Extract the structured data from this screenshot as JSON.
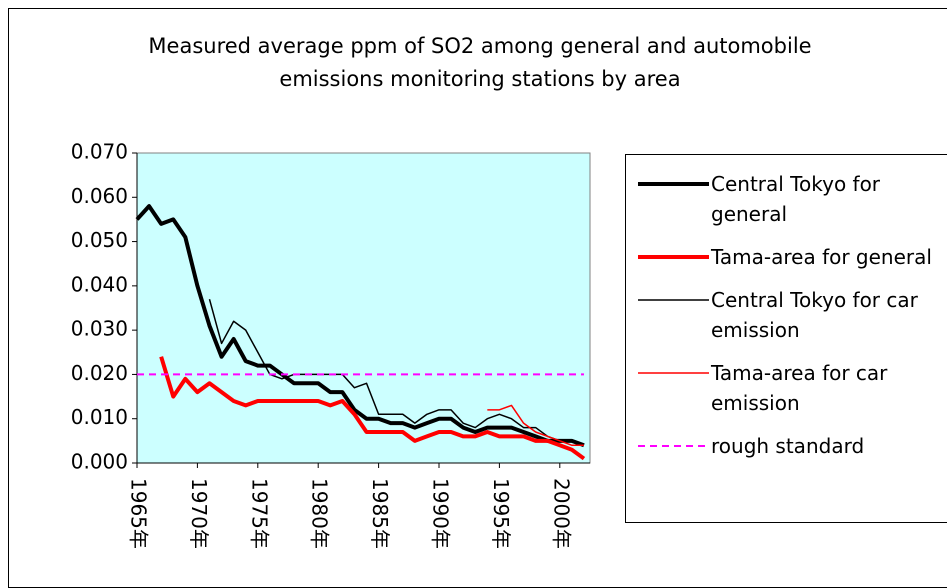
{
  "chart_data": {
    "type": "line",
    "title": "Measured average ppm of SO2 among general and automobile emissions monitoring stations by area",
    "x": [
      1965,
      1966,
      1967,
      1968,
      1969,
      1970,
      1971,
      1972,
      1973,
      1974,
      1975,
      1976,
      1977,
      1978,
      1979,
      1980,
      1981,
      1982,
      1983,
      1984,
      1985,
      1986,
      1987,
      1988,
      1989,
      1990,
      1991,
      1992,
      1993,
      1994,
      1995,
      1996,
      1997,
      1998,
      1999,
      2000,
      2001,
      2002
    ],
    "xlim": [
      1965,
      2002.5
    ],
    "xticks": [
      {
        "value": 1965,
        "label": "1965年"
      },
      {
        "value": 1970,
        "label": "1970年"
      },
      {
        "value": 1975,
        "label": "1975年"
      },
      {
        "value": 1980,
        "label": "1980年"
      },
      {
        "value": 1985,
        "label": "1985年"
      },
      {
        "value": 1990,
        "label": "1990年"
      },
      {
        "value": 1995,
        "label": "1995年"
      },
      {
        "value": 2000,
        "label": "2000年"
      }
    ],
    "ylim": [
      0,
      0.07
    ],
    "yticks": [
      {
        "value": 0,
        "label": "0.000"
      },
      {
        "value": 0.01,
        "label": "0.010"
      },
      {
        "value": 0.02,
        "label": "0.020"
      },
      {
        "value": 0.03,
        "label": "0.030"
      },
      {
        "value": 0.04,
        "label": "0.040"
      },
      {
        "value": 0.05,
        "label": "0.050"
      },
      {
        "value": 0.06,
        "label": "0.060"
      },
      {
        "value": 0.07,
        "label": "0.070"
      }
    ],
    "series": [
      {
        "name": "Central Tokyo for general",
        "color": "#000000",
        "width": 4,
        "values": [
          0.055,
          0.058,
          0.054,
          0.055,
          0.051,
          0.04,
          0.031,
          0.024,
          0.028,
          0.023,
          0.022,
          0.022,
          0.02,
          0.018,
          0.018,
          0.018,
          0.016,
          0.016,
          0.012,
          0.01,
          0.01,
          0.009,
          0.009,
          0.008,
          0.009,
          0.01,
          0.01,
          0.008,
          0.007,
          0.008,
          0.008,
          0.008,
          0.007,
          0.006,
          0.005,
          0.005,
          0.005,
          0.004
        ]
      },
      {
        "name": "Tama-area for general",
        "color": "#ff0000",
        "width": 4,
        "values": [
          null,
          null,
          0.024,
          0.015,
          0.019,
          0.016,
          0.018,
          0.016,
          0.014,
          0.013,
          0.014,
          0.014,
          0.014,
          0.014,
          0.014,
          0.014,
          0.013,
          0.014,
          0.011,
          0.007,
          0.007,
          0.007,
          0.007,
          0.005,
          0.006,
          0.007,
          0.007,
          0.006,
          0.006,
          0.007,
          0.006,
          0.006,
          0.006,
          0.005,
          0.005,
          0.004,
          0.003,
          0.001
        ]
      },
      {
        "name": "Central Tokyo for car emission",
        "color": "#000000",
        "width": 1.5,
        "values": [
          null,
          null,
          null,
          null,
          null,
          null,
          0.037,
          0.027,
          0.032,
          0.03,
          0.025,
          0.02,
          0.019,
          0.02,
          0.02,
          0.02,
          0.02,
          0.02,
          0.017,
          0.018,
          0.011,
          0.011,
          0.011,
          0.009,
          0.011,
          0.012,
          0.012,
          0.009,
          0.008,
          0.01,
          0.011,
          0.01,
          0.008,
          0.008,
          0.006,
          0.005,
          0.005,
          0.004
        ]
      },
      {
        "name": "Tama-area for car emission",
        "color": "#ff0000",
        "width": 1.5,
        "values": [
          null,
          null,
          null,
          null,
          null,
          null,
          null,
          null,
          null,
          null,
          null,
          null,
          null,
          null,
          null,
          null,
          null,
          null,
          null,
          null,
          null,
          null,
          null,
          null,
          null,
          null,
          null,
          null,
          null,
          0.012,
          0.012,
          0.013,
          0.009,
          0.007,
          0.006,
          0.005,
          0.004,
          0.004
        ]
      },
      {
        "name": "rough standard",
        "color": "#ff00ff",
        "width": 2,
        "dashed": true,
        "values": [
          0.02,
          0.02,
          0.02,
          0.02,
          0.02,
          0.02,
          0.02,
          0.02,
          0.02,
          0.02,
          0.02,
          0.02,
          0.02,
          0.02,
          0.02,
          0.02,
          0.02,
          0.02,
          0.02,
          0.02,
          0.02,
          0.02,
          0.02,
          0.02,
          0.02,
          0.02,
          0.02,
          0.02,
          0.02,
          0.02,
          0.02,
          0.02,
          0.02,
          0.02,
          0.02,
          0.02,
          0.02,
          0.02
        ]
      }
    ]
  }
}
